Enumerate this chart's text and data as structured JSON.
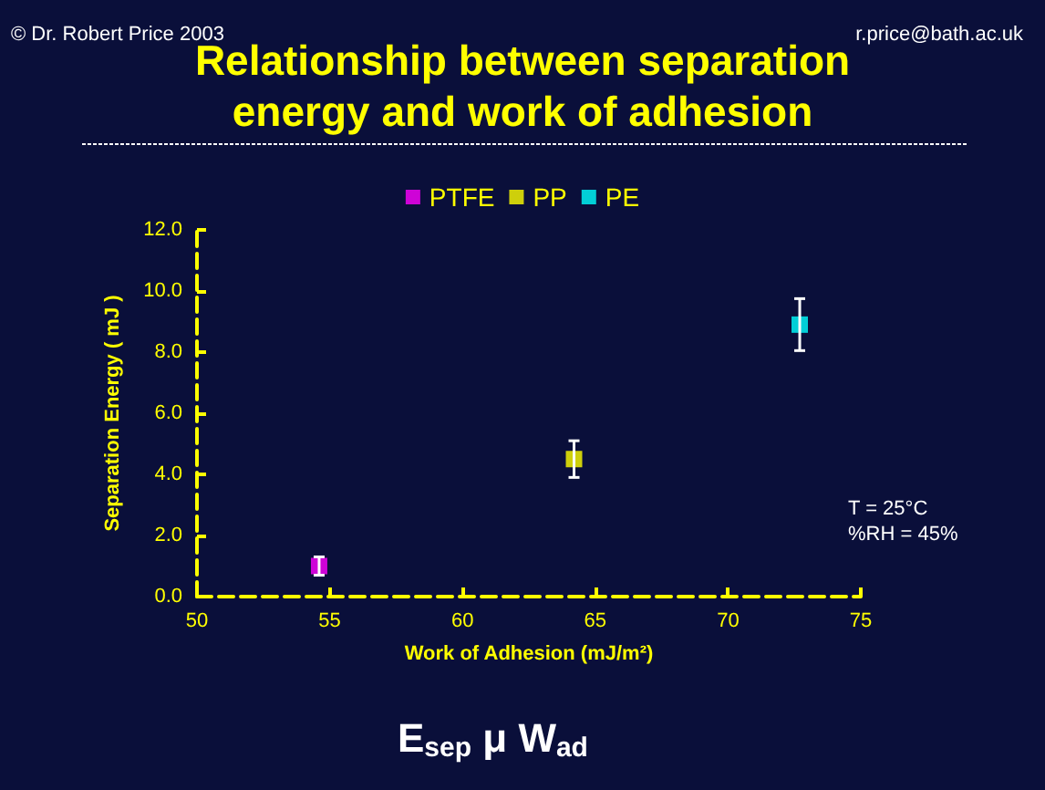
{
  "chart_data": {
    "type": "scatter",
    "title": "Relationship between separation\nenergy and work of adhesion",
    "xlabel": "Work of Adhesion (mJ/m²)",
    "ylabel": "Separation Energy ( mJ )",
    "xlim": [
      50,
      75
    ],
    "xticks": [
      50,
      55,
      60,
      65,
      70,
      75
    ],
    "ylim": [
      0,
      12
    ],
    "yticks": [
      {
        "value": 0,
        "label": "0.0"
      },
      {
        "value": 2,
        "label": "2.0"
      },
      {
        "value": 4,
        "label": "4.0"
      },
      {
        "value": 6,
        "label": "6.0"
      },
      {
        "value": 8,
        "label": "8.0"
      },
      {
        "value": 10,
        "label": "10.0"
      },
      {
        "value": 12,
        "label": "12.0"
      }
    ],
    "series": [
      {
        "name": "PTFE",
        "color": "#ff00ff",
        "x": [
          54.6
        ],
        "values": [
          1.0
        ],
        "errors": [
          0.3
        ]
      },
      {
        "name": "PP",
        "color": "#ffff00",
        "x": [
          64.2
        ],
        "values": [
          4.5
        ],
        "errors": [
          0.6
        ]
      },
      {
        "name": "PE",
        "color": "#00ffff",
        "x": [
          72.7
        ],
        "values": [
          8.9
        ],
        "errors": [
          0.85
        ]
      }
    ],
    "marker": "square",
    "grid": false,
    "legend": "top",
    "annotations": [
      "© Dr. Robert Price 2003",
      "r.price@bath.ac.uk",
      "T = 25°C\n%RH = 45%",
      "E$_{sep}$ μ W$_{ad}$"
    ]
  }
}
